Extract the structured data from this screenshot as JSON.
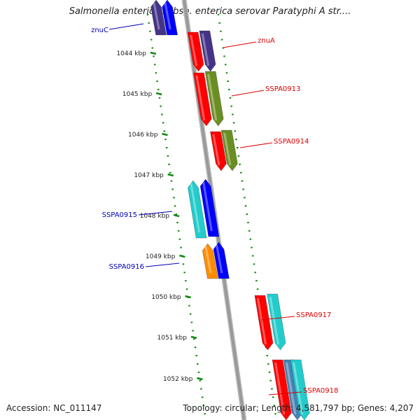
{
  "header": {
    "title": "Salmonella enterica subsp. enterica serovar Paratyphi A str...."
  },
  "footer": {
    "accession": "Accession: NC_011147",
    "topology": "Topology: circular; Length: 4,581,797 bp; Genes: 4,207"
  },
  "colors": {
    "genome": "#999999",
    "ruler": "#118811",
    "forward_label": "#dd0000",
    "reverse_label": "#0000bb",
    "red": "#ff0000",
    "navy": "#443388",
    "olive": "#6b8e23",
    "cyan": "#22cccc",
    "blue": "#0000ff",
    "orange": "#ff8c00",
    "steel": "#4682b4"
  },
  "map": {
    "ticks": [
      {
        "label": "1044 kbp"
      },
      {
        "label": "1045 kbp"
      },
      {
        "label": "1046 kbp"
      },
      {
        "label": "1047 kbp"
      },
      {
        "label": "1048 kbp"
      },
      {
        "label": "1049 kbp"
      },
      {
        "label": "1050 kbp"
      },
      {
        "label": "1051 kbp"
      },
      {
        "label": "1052 kbp"
      }
    ],
    "gene_labels": [
      {
        "id": "znuC",
        "text": "znuC",
        "strand": "reverse"
      },
      {
        "id": "znuA",
        "text": "znuA",
        "strand": "forward"
      },
      {
        "id": "SSPA0913",
        "text": "SSPA0913",
        "strand": "forward"
      },
      {
        "id": "SSPA0914",
        "text": "SSPA0914",
        "strand": "forward"
      },
      {
        "id": "SSPA0915",
        "text": "SSPA0915",
        "strand": "reverse"
      },
      {
        "id": "SSPA0916",
        "text": "SSPA0916",
        "strand": "reverse"
      },
      {
        "id": "SSPA0917",
        "text": "SSPA0917",
        "strand": "forward"
      },
      {
        "id": "SSPA0918",
        "text": "SSPA0918",
        "strand": "forward"
      }
    ]
  }
}
